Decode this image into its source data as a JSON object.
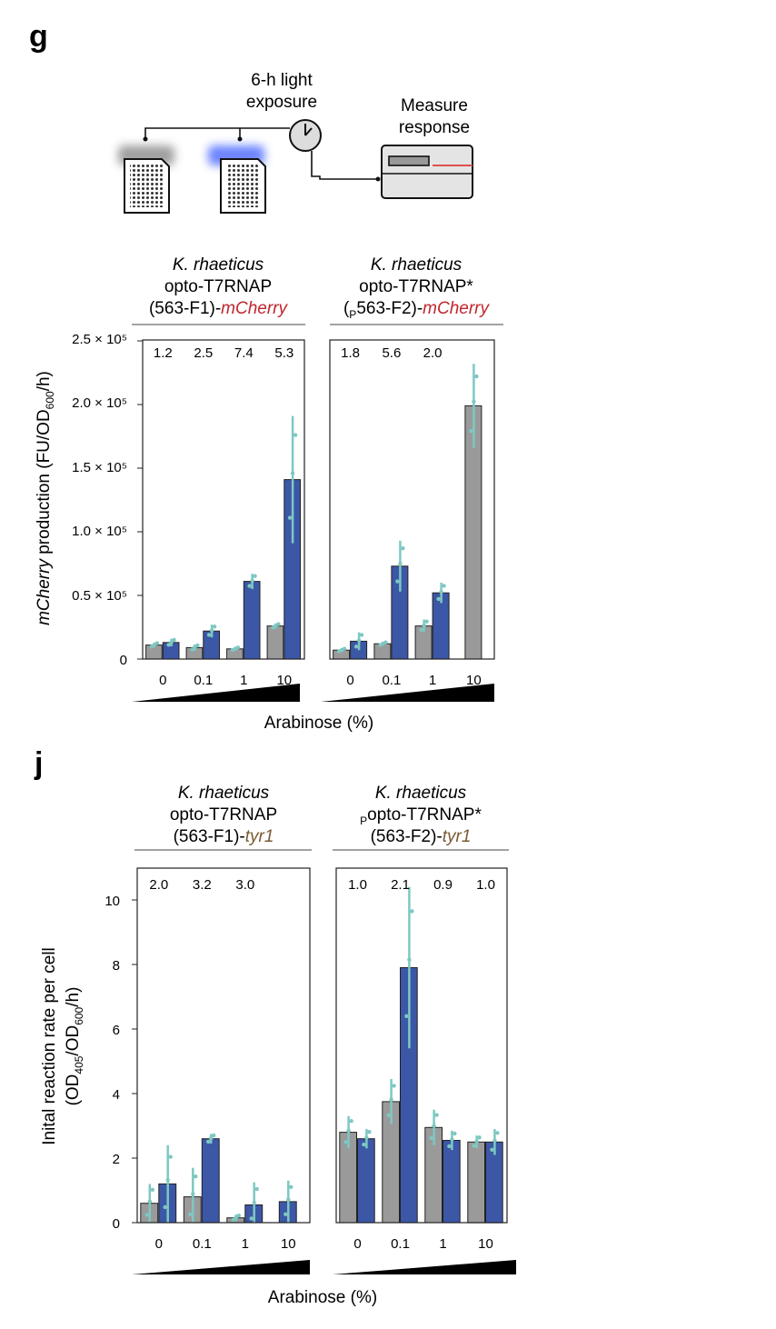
{
  "panels": {
    "g": {
      "letter": "g",
      "schematic": {
        "light_label_1": "6-h light",
        "light_label_2": "exposure",
        "measure_label_1": "Measure",
        "measure_label_2": "response"
      },
      "ylabel_italic": "mCherry",
      "ylabel_rest": " production (FU/OD",
      "ylabel_sub": "600",
      "ylabel_end": "/h)",
      "yticks": [
        "0",
        "0.5 × 10⁵",
        "1.0 × 10⁵",
        "1.5 × 10⁵",
        "2.0 × 10⁵",
        "2.5 × 10⁵"
      ],
      "xlabel": "Arabinose (%)",
      "colors": {
        "gray": "#9a9a9a",
        "blue": "#3c57a6",
        "dots": "#7ec8c2",
        "red": "#c0262d"
      }
    },
    "j": {
      "letter": "j",
      "ylabel_line1": "Inital reaction rate per cell",
      "ylabel_line2_a": "(OD",
      "ylabel_line2_sub1": "405",
      "ylabel_line2_b": "/OD",
      "ylabel_line2_sub2": "600",
      "ylabel_line2_c": "/h)",
      "yticks": [
        "0",
        "2",
        "4",
        "6",
        "8",
        "10"
      ],
      "xlabel": "Arabinose (%)",
      "colors": {
        "gray": "#9a9a9a",
        "blue": "#3c57a6",
        "dots": "#7ec8c2",
        "brown": "#7a5a33"
      }
    }
  },
  "chart_data": [
    {
      "type": "bar",
      "panel": "g",
      "title_line1": "K. rhaeticus",
      "title_line2": "opto-T7RNAP",
      "title_line3_a": "(563-F1)-",
      "title_line3_b": "mCherry",
      "categories": [
        "0",
        "0.1",
        "1",
        "10"
      ],
      "ylim": [
        0,
        250000
      ],
      "fold_changes": [
        "1.2",
        "2.5",
        "7.4",
        "5.3"
      ],
      "series": [
        {
          "values": [
            11000,
            9000,
            8000,
            26000
          ],
          "errors": [
            2000,
            2500,
            1500,
            2000
          ]
        },
        {
          "values": [
            13000,
            22000,
            61000,
            141000
          ],
          "errors": [
            3000,
            5000,
            6000,
            50000
          ]
        }
      ]
    },
    {
      "type": "bar",
      "panel": "g",
      "title_line1": "K. rhaeticus",
      "title_line2": "opto-T7RNAP*",
      "title_line3_pre": "(",
      "title_line3_sub": "P",
      "title_line3_a": "563-F2)-",
      "title_line3_b": "mCherry",
      "categories": [
        "0",
        "0.1",
        "1",
        "10"
      ],
      "ylim": [
        0,
        250000
      ],
      "fold_changes": [
        "1.8",
        "5.6",
        "2.0",
        ""
      ],
      "series": [
        {
          "values": [
            7000,
            12000,
            26000,
            199000
          ],
          "errors": [
            1500,
            1500,
            5000,
            33000
          ]
        },
        {
          "values": [
            14000,
            73000,
            52000,
            null
          ],
          "errors": [
            7000,
            20000,
            8000,
            0
          ]
        }
      ]
    },
    {
      "type": "bar",
      "panel": "j",
      "title_line1": "K. rhaeticus",
      "title_line2": "opto-T7RNAP",
      "title_line3_a": "(563-F1)-",
      "title_line3_b": "tyr1",
      "categories": [
        "0",
        "0.1",
        "1",
        "10"
      ],
      "ylim": [
        0,
        11
      ],
      "fold_changes": [
        "2.0",
        "3.2",
        "3.0",
        ""
      ],
      "series": [
        {
          "values": [
            0.6,
            0.8,
            0.15,
            null
          ],
          "errors": [
            0.6,
            0.9,
            0.1,
            0
          ]
        },
        {
          "values": [
            1.2,
            2.6,
            0.55,
            0.65
          ],
          "errors": [
            1.2,
            0.15,
            0.7,
            0.65
          ]
        }
      ]
    },
    {
      "type": "bar",
      "panel": "j",
      "title_line1": "K. rhaeticus",
      "title_line2_sub": "P",
      "title_line2": "opto-T7RNAP*",
      "title_line3_a": "(563-F2)-",
      "title_line3_b": "tyr1",
      "categories": [
        "0",
        "0.1",
        "1",
        "10"
      ],
      "ylim": [
        0,
        11
      ],
      "fold_changes": [
        "1.0",
        "2.1",
        "0.9",
        "1.0"
      ],
      "series": [
        {
          "values": [
            2.8,
            3.75,
            2.95,
            2.5
          ],
          "errors": [
            0.5,
            0.7,
            0.55,
            0.2
          ]
        },
        {
          "values": [
            2.6,
            7.9,
            2.55,
            2.5
          ],
          "errors": [
            0.3,
            2.5,
            0.3,
            0.4
          ]
        }
      ]
    }
  ]
}
